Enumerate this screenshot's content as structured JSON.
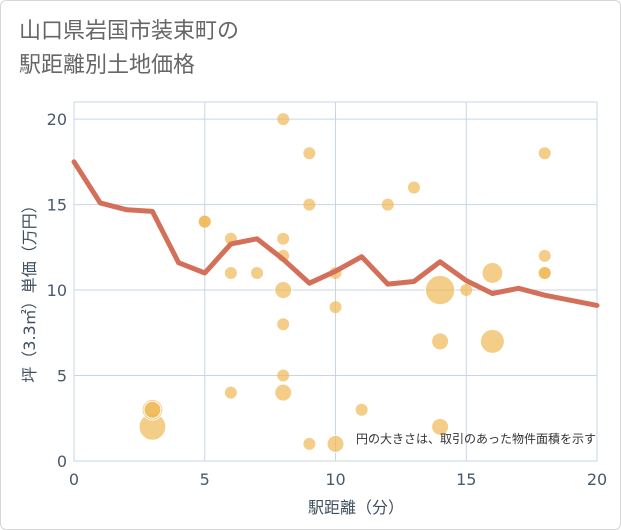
{
  "chart_data": {
    "type": "scatter",
    "title_lines": [
      "山口県岩国市装束町の",
      "駅距離別土地価格"
    ],
    "xlabel": "駅距離（分）",
    "ylabel": "坪（3.3㎡）単価（万円）",
    "xlim": [
      0,
      20
    ],
    "ylim": [
      0,
      21
    ],
    "xticks": [
      0,
      5,
      10,
      15,
      20
    ],
    "yticks": [
      0,
      5,
      10,
      15,
      20
    ],
    "grid": true,
    "annotation": "円の大きさは、取引のあった物件面積を示す",
    "colors": {
      "bubble": "#f0b855",
      "bubble_highlight": "#e8a030",
      "line": "#d4705a",
      "grid": "#c8d6e4",
      "plot_border": "#c8d6e4"
    },
    "scatter_series": [
      {
        "x": 3,
        "y": 2,
        "size": 5
      },
      {
        "x": 3,
        "y": 3,
        "size": 3
      },
      {
        "x": 3,
        "y": 3,
        "size": 2
      },
      {
        "x": 5,
        "y": 14,
        "size": 1
      },
      {
        "x": 5,
        "y": 14,
        "size": 1
      },
      {
        "x": 6,
        "y": 13,
        "size": 1
      },
      {
        "x": 6,
        "y": 11,
        "size": 1
      },
      {
        "x": 6,
        "y": 4,
        "size": 1
      },
      {
        "x": 7,
        "y": 11,
        "size": 1
      },
      {
        "x": 8,
        "y": 20,
        "size": 1
      },
      {
        "x": 8,
        "y": 13,
        "size": 1
      },
      {
        "x": 8,
        "y": 12,
        "size": 1
      },
      {
        "x": 8,
        "y": 10,
        "size": 2
      },
      {
        "x": 8,
        "y": 8,
        "size": 1
      },
      {
        "x": 8,
        "y": 5,
        "size": 1
      },
      {
        "x": 8,
        "y": 4,
        "size": 2
      },
      {
        "x": 9,
        "y": 18,
        "size": 1
      },
      {
        "x": 9,
        "y": 15,
        "size": 1
      },
      {
        "x": 9,
        "y": 1,
        "size": 1
      },
      {
        "x": 10,
        "y": 11,
        "size": 1
      },
      {
        "x": 10,
        "y": 9,
        "size": 1
      },
      {
        "x": 10,
        "y": 1,
        "size": 2
      },
      {
        "x": 11,
        "y": 3,
        "size": 1
      },
      {
        "x": 12,
        "y": 15,
        "size": 1
      },
      {
        "x": 13,
        "y": 16,
        "size": 1
      },
      {
        "x": 14,
        "y": 10,
        "size": 6
      },
      {
        "x": 14,
        "y": 7,
        "size": 2
      },
      {
        "x": 14,
        "y": 2,
        "size": 2
      },
      {
        "x": 15,
        "y": 10,
        "size": 1
      },
      {
        "x": 16,
        "y": 11,
        "size": 3
      },
      {
        "x": 16,
        "y": 7,
        "size": 4
      },
      {
        "x": 18,
        "y": 18,
        "size": 1
      },
      {
        "x": 18,
        "y": 12,
        "size": 1
      },
      {
        "x": 18,
        "y": 11,
        "size": 1
      },
      {
        "x": 18,
        "y": 11,
        "size": 1
      }
    ],
    "line_series": {
      "name": "average",
      "x": [
        0,
        1,
        2,
        3,
        4,
        5,
        6,
        7,
        8,
        9,
        10,
        11,
        12,
        13,
        14,
        15,
        16,
        17,
        18,
        19,
        20
      ],
      "y": [
        17.5,
        15.1,
        14.7,
        14.6,
        11.6,
        11.0,
        12.7,
        13.0,
        11.8,
        10.4,
        11.1,
        11.95,
        10.35,
        10.5,
        11.65,
        10.55,
        9.8,
        10.1,
        9.7,
        9.4,
        9.1
      ]
    }
  }
}
